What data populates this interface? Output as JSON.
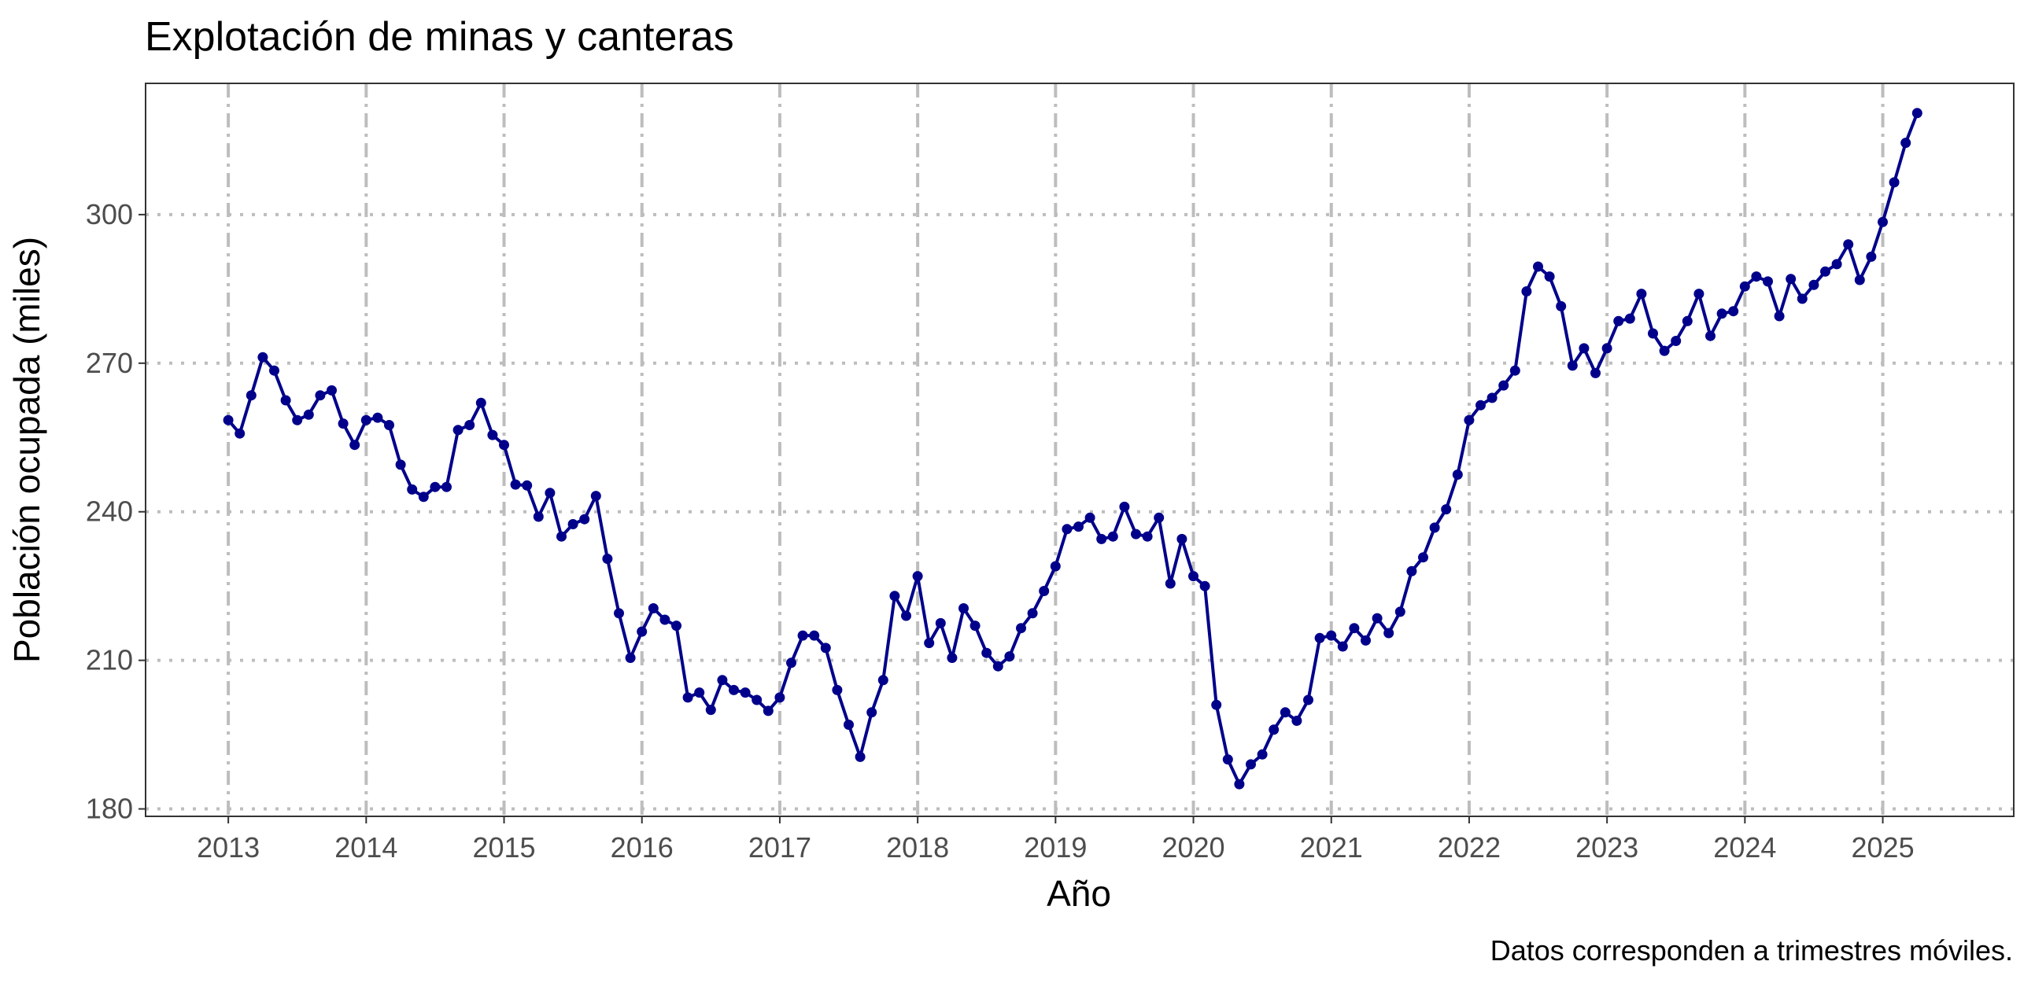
{
  "chart_data": {
    "type": "line",
    "title": "Explotación de minas y canteras",
    "xlabel": "Año",
    "ylabel": "Población ocupada (miles)",
    "caption": "Datos corresponden a trimestres móviles.",
    "xlim": [
      2012.4,
      2025.95
    ],
    "ylim": [
      178.5,
      326.5
    ],
    "x_ticks": [
      2013,
      2014,
      2015,
      2016,
      2017,
      2018,
      2019,
      2020,
      2021,
      2022,
      2023,
      2024,
      2025
    ],
    "y_ticks": [
      180,
      210,
      240,
      270,
      300
    ],
    "x_start": 2013.0,
    "x_step": 0.08333,
    "grid": true,
    "legend": "none",
    "colors": {
      "series": "#00008b",
      "grid": "#bdbdbd",
      "border": "#333333"
    },
    "series": [
      {
        "values": [
          258.5,
          255.8,
          263.5,
          271.2,
          268.5,
          262.5,
          258.5,
          259.6,
          263.5,
          264.5,
          257.8,
          253.5,
          258.5,
          259.0,
          257.5,
          249.5,
          244.5,
          243.0,
          245.0,
          245.0,
          256.5,
          257.5,
          262.0,
          255.5,
          253.5,
          245.5,
          245.3,
          239.0,
          243.8,
          235.0,
          237.5,
          238.5,
          243.2,
          230.5,
          219.5,
          210.5,
          215.8,
          220.5,
          218.2,
          217.0,
          202.5,
          203.5,
          200.0,
          206.0,
          204.0,
          203.5,
          202.0,
          199.8,
          202.5,
          209.5,
          215.0,
          215.0,
          212.5,
          204.0,
          197.0,
          190.5,
          199.5,
          206.0,
          223.0,
          219.0,
          227.0,
          213.5,
          217.5,
          210.5,
          220.5,
          217.0,
          211.5,
          208.8,
          210.8,
          216.5,
          219.5,
          224.0,
          229.0,
          236.5,
          237.0,
          238.8,
          234.5,
          235.0,
          241.0,
          235.5,
          235.0,
          238.8,
          225.5,
          234.5,
          227.0,
          225.0,
          201.0,
          190.0,
          185.0,
          189.0,
          191.0,
          196.0,
          199.5,
          197.8,
          202.0,
          214.5,
          215.0,
          212.8,
          216.5,
          214.0,
          218.5,
          215.5,
          219.8,
          228.0,
          230.8,
          236.8,
          240.5,
          247.5,
          258.5,
          261.5,
          263.0,
          265.5,
          268.5,
          284.5,
          289.5,
          287.5,
          281.5,
          269.5,
          273.0,
          268.0,
          273.0,
          278.5,
          279.0,
          284.0,
          276.0,
          272.5,
          274.5,
          278.5,
          284.0,
          275.5,
          280.0,
          280.5,
          285.5,
          287.5,
          286.5,
          279.5,
          287.0,
          283.0,
          285.8,
          288.5,
          290.0,
          294.0,
          286.8,
          291.5,
          298.5,
          306.5,
          314.5,
          320.5
        ]
      }
    ]
  }
}
